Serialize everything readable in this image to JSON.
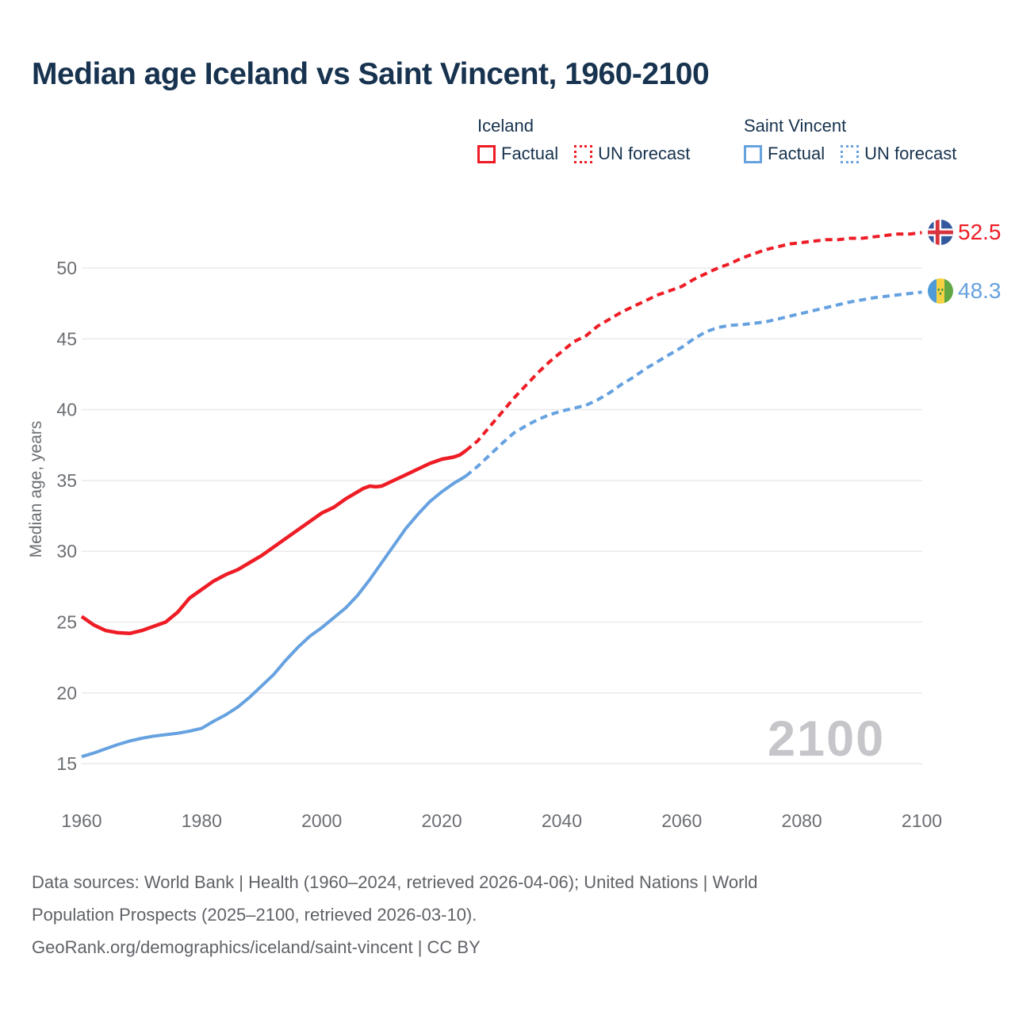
{
  "title": "Median age Iceland vs Saint Vincent, 1960-2100",
  "legend": {
    "groups": [
      {
        "name": "Iceland",
        "factual_label": "Factual",
        "forecast_label": "UN forecast",
        "color": "#ee1c25"
      },
      {
        "name": "Saint Vincent",
        "factual_label": "Factual",
        "forecast_label": "UN forecast",
        "color": "#66a1e0"
      }
    ]
  },
  "end_labels": [
    {
      "country": "Iceland",
      "value": "52.5",
      "flag_icon": "iceland-flag-icon",
      "color": "#ee1c25"
    },
    {
      "country": "Saint Vincent",
      "value": "48.3",
      "flag_icon": "saint-vincent-flag-icon",
      "color": "#66a1e0"
    }
  ],
  "watermark": "2100",
  "footer": {
    "line1": "Data sources: World Bank | Health (1960–2024, retrieved 2026-04-06); United Nations | World",
    "line2": "Population Prospects (2025–2100, retrieved 2026-03-10).",
    "line3": "GeoRank.org/demographics/iceland/saint-vincent | CC BY"
  },
  "colors": {
    "iceland_line": "#ee1c25",
    "saint_vincent_line": "#66a1e0",
    "title_text": "#17334f",
    "axis_text": "#6b6e73",
    "gridline": "#ebebee",
    "watermark_text": "#c5c5ca",
    "footer_text": "#5f6267"
  },
  "chart_data": {
    "type": "line",
    "title": "Median age Iceland vs Saint Vincent, 1960-2100",
    "xlabel": "",
    "ylabel": "Median age, years",
    "x_ticks": [
      1960,
      1980,
      2000,
      2020,
      2040,
      2060,
      2080,
      2100
    ],
    "y_ticks": [
      15,
      20,
      25,
      30,
      35,
      40,
      45,
      50
    ],
    "xlim": [
      1960,
      2100
    ],
    "ylim": [
      15,
      52.5
    ],
    "grid": "horizontal-only",
    "legend_position": "top-right",
    "forecast_split_year": 2024,
    "series": [
      {
        "name": "Iceland Factual",
        "style": "solid",
        "color": "#ee1c25",
        "width": 4.5,
        "points": [
          [
            1960,
            25.4
          ],
          [
            1962,
            24.8
          ],
          [
            1964,
            24.4
          ],
          [
            1966,
            24.25
          ],
          [
            1968,
            24.2
          ],
          [
            1970,
            24.4
          ],
          [
            1972,
            24.7
          ],
          [
            1974,
            25.0
          ],
          [
            1976,
            25.7
          ],
          [
            1978,
            26.7
          ],
          [
            1980,
            27.3
          ],
          [
            1982,
            27.9
          ],
          [
            1984,
            28.35
          ],
          [
            1986,
            28.7
          ],
          [
            1988,
            29.2
          ],
          [
            1990,
            29.7
          ],
          [
            1992,
            30.3
          ],
          [
            1994,
            30.9
          ],
          [
            1996,
            31.5
          ],
          [
            1998,
            32.1
          ],
          [
            2000,
            32.7
          ],
          [
            2002,
            33.1
          ],
          [
            2004,
            33.7
          ],
          [
            2006,
            34.2
          ],
          [
            2007,
            34.45
          ],
          [
            2008,
            34.6
          ],
          [
            2009,
            34.55
          ],
          [
            2010,
            34.6
          ],
          [
            2012,
            35.0
          ],
          [
            2014,
            35.4
          ],
          [
            2016,
            35.8
          ],
          [
            2018,
            36.2
          ],
          [
            2020,
            36.5
          ],
          [
            2022,
            36.65
          ],
          [
            2023,
            36.8
          ],
          [
            2024,
            37.1
          ]
        ]
      },
      {
        "name": "Iceland UN forecast",
        "style": "dashed",
        "color": "#ee1c25",
        "width": 4,
        "points": [
          [
            2024,
            37.1
          ],
          [
            2026,
            37.8
          ],
          [
            2028,
            38.8
          ],
          [
            2030,
            39.8
          ],
          [
            2032,
            40.8
          ],
          [
            2034,
            41.7
          ],
          [
            2036,
            42.6
          ],
          [
            2038,
            43.4
          ],
          [
            2040,
            44.1
          ],
          [
            2042,
            44.8
          ],
          [
            2044,
            45.2
          ],
          [
            2046,
            45.9
          ],
          [
            2048,
            46.4
          ],
          [
            2050,
            46.9
          ],
          [
            2052,
            47.3
          ],
          [
            2054,
            47.7
          ],
          [
            2056,
            48.1
          ],
          [
            2058,
            48.4
          ],
          [
            2060,
            48.7
          ],
          [
            2062,
            49.2
          ],
          [
            2064,
            49.6
          ],
          [
            2066,
            50.0
          ],
          [
            2068,
            50.3
          ],
          [
            2070,
            50.7
          ],
          [
            2072,
            51.0
          ],
          [
            2074,
            51.3
          ],
          [
            2076,
            51.5
          ],
          [
            2078,
            51.7
          ],
          [
            2080,
            51.8
          ],
          [
            2082,
            51.9
          ],
          [
            2084,
            52.0
          ],
          [
            2086,
            52.0
          ],
          [
            2088,
            52.1
          ],
          [
            2090,
            52.1
          ],
          [
            2092,
            52.2
          ],
          [
            2094,
            52.3
          ],
          [
            2096,
            52.4
          ],
          [
            2098,
            52.4
          ],
          [
            2100,
            52.5
          ]
        ]
      },
      {
        "name": "Saint Vincent Factual",
        "style": "solid",
        "color": "#66a1e0",
        "width": 4,
        "points": [
          [
            1960,
            15.5
          ],
          [
            1962,
            15.75
          ],
          [
            1964,
            16.05
          ],
          [
            1966,
            16.35
          ],
          [
            1968,
            16.6
          ],
          [
            1970,
            16.8
          ],
          [
            1972,
            16.95
          ],
          [
            1974,
            17.05
          ],
          [
            1976,
            17.15
          ],
          [
            1978,
            17.3
          ],
          [
            1980,
            17.5
          ],
          [
            1982,
            18.0
          ],
          [
            1984,
            18.45
          ],
          [
            1986,
            19.0
          ],
          [
            1988,
            19.7
          ],
          [
            1990,
            20.5
          ],
          [
            1992,
            21.3
          ],
          [
            1994,
            22.3
          ],
          [
            1996,
            23.2
          ],
          [
            1998,
            24.0
          ],
          [
            2000,
            24.6
          ],
          [
            2002,
            25.3
          ],
          [
            2004,
            26.0
          ],
          [
            2006,
            26.9
          ],
          [
            2008,
            28.0
          ],
          [
            2010,
            29.2
          ],
          [
            2012,
            30.4
          ],
          [
            2014,
            31.6
          ],
          [
            2016,
            32.6
          ],
          [
            2018,
            33.5
          ],
          [
            2020,
            34.2
          ],
          [
            2022,
            34.8
          ],
          [
            2024,
            35.3
          ]
        ]
      },
      {
        "name": "Saint Vincent UN forecast",
        "style": "dashed",
        "color": "#66a1e0",
        "width": 4,
        "points": [
          [
            2024,
            35.3
          ],
          [
            2026,
            36.0
          ],
          [
            2028,
            36.8
          ],
          [
            2030,
            37.6
          ],
          [
            2032,
            38.35
          ],
          [
            2034,
            38.85
          ],
          [
            2036,
            39.3
          ],
          [
            2038,
            39.65
          ],
          [
            2040,
            39.9
          ],
          [
            2042,
            40.1
          ],
          [
            2044,
            40.3
          ],
          [
            2046,
            40.7
          ],
          [
            2048,
            41.2
          ],
          [
            2050,
            41.8
          ],
          [
            2052,
            42.3
          ],
          [
            2054,
            42.9
          ],
          [
            2056,
            43.4
          ],
          [
            2058,
            43.9
          ],
          [
            2060,
            44.4
          ],
          [
            2062,
            45.0
          ],
          [
            2064,
            45.5
          ],
          [
            2066,
            45.8
          ],
          [
            2068,
            45.95
          ],
          [
            2070,
            46.0
          ],
          [
            2072,
            46.1
          ],
          [
            2074,
            46.2
          ],
          [
            2076,
            46.4
          ],
          [
            2078,
            46.6
          ],
          [
            2080,
            46.8
          ],
          [
            2082,
            47.0
          ],
          [
            2084,
            47.2
          ],
          [
            2086,
            47.4
          ],
          [
            2088,
            47.6
          ],
          [
            2090,
            47.75
          ],
          [
            2092,
            47.9
          ],
          [
            2094,
            48.0
          ],
          [
            2096,
            48.1
          ],
          [
            2098,
            48.2
          ],
          [
            2100,
            48.3
          ]
        ]
      }
    ],
    "end_values": {
      "Iceland": 52.5,
      "Saint Vincent": 48.3
    }
  }
}
